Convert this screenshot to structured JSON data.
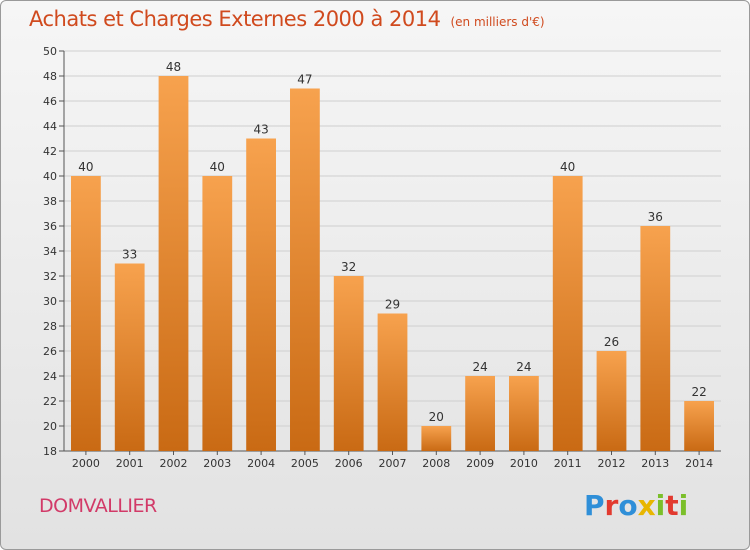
{
  "header": {
    "title": "Achats et Charges Externes 2000 à 2014",
    "subtitle": "(en milliers d'€)"
  },
  "footer": {
    "commune": "DOMVALLIER",
    "logo_text": "Proxiti",
    "logo_colors": [
      "#2f8fd8",
      "#e23a2f",
      "#2f8fd8",
      "#e8b600",
      "#7bbf2a",
      "#e23a2f",
      "#7bbf2a"
    ]
  },
  "colors": {
    "bar_top": "#f7a24e",
    "bar_bottom": "#c96a14",
    "title": "#d04a1e",
    "commune": "#d23a68"
  },
  "chart_data": {
    "type": "bar",
    "categories": [
      "2000",
      "2001",
      "2002",
      "2003",
      "2004",
      "2005",
      "2006",
      "2007",
      "2008",
      "2009",
      "2010",
      "2011",
      "2012",
      "2013",
      "2014"
    ],
    "values": [
      40,
      33,
      48,
      40,
      43,
      47,
      32,
      29,
      20,
      24,
      24,
      40,
      26,
      36,
      22
    ],
    "ylim": [
      18,
      50
    ],
    "yticks": [
      18,
      20,
      22,
      24,
      26,
      28,
      30,
      32,
      34,
      36,
      38,
      40,
      42,
      44,
      46,
      48,
      50
    ],
    "grid": true
  }
}
